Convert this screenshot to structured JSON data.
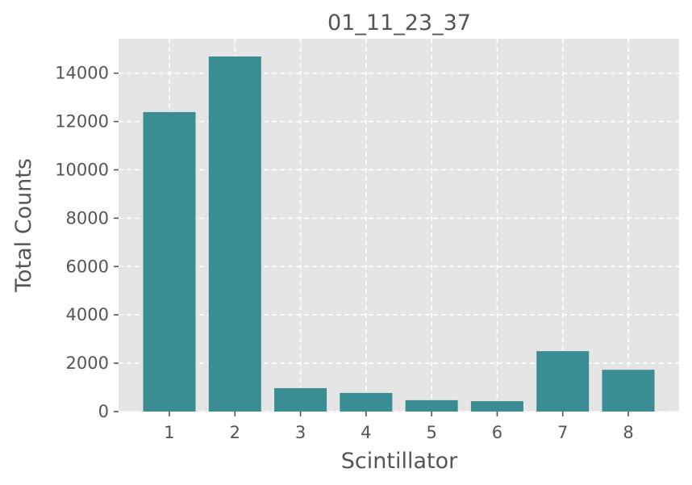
{
  "chart_data": {
    "type": "bar",
    "title": "01_11_23_37",
    "xlabel": "Scintillator",
    "ylabel": "Total Counts",
    "categories": [
      "1",
      "2",
      "3",
      "4",
      "5",
      "6",
      "7",
      "8"
    ],
    "values": [
      12390,
      14690,
      970,
      770,
      470,
      430,
      2500,
      1730
    ],
    "ylim": [
      0,
      15425
    ],
    "xlim": [
      0.225,
      8.775
    ],
    "yticks": [
      0,
      2000,
      4000,
      6000,
      8000,
      10000,
      12000,
      14000
    ],
    "grid": true,
    "style": "ggplot",
    "colors": {
      "bar": "#3a8d92",
      "background": "#e5e5e5",
      "grid": "#ffffff",
      "text": "#555555"
    }
  }
}
